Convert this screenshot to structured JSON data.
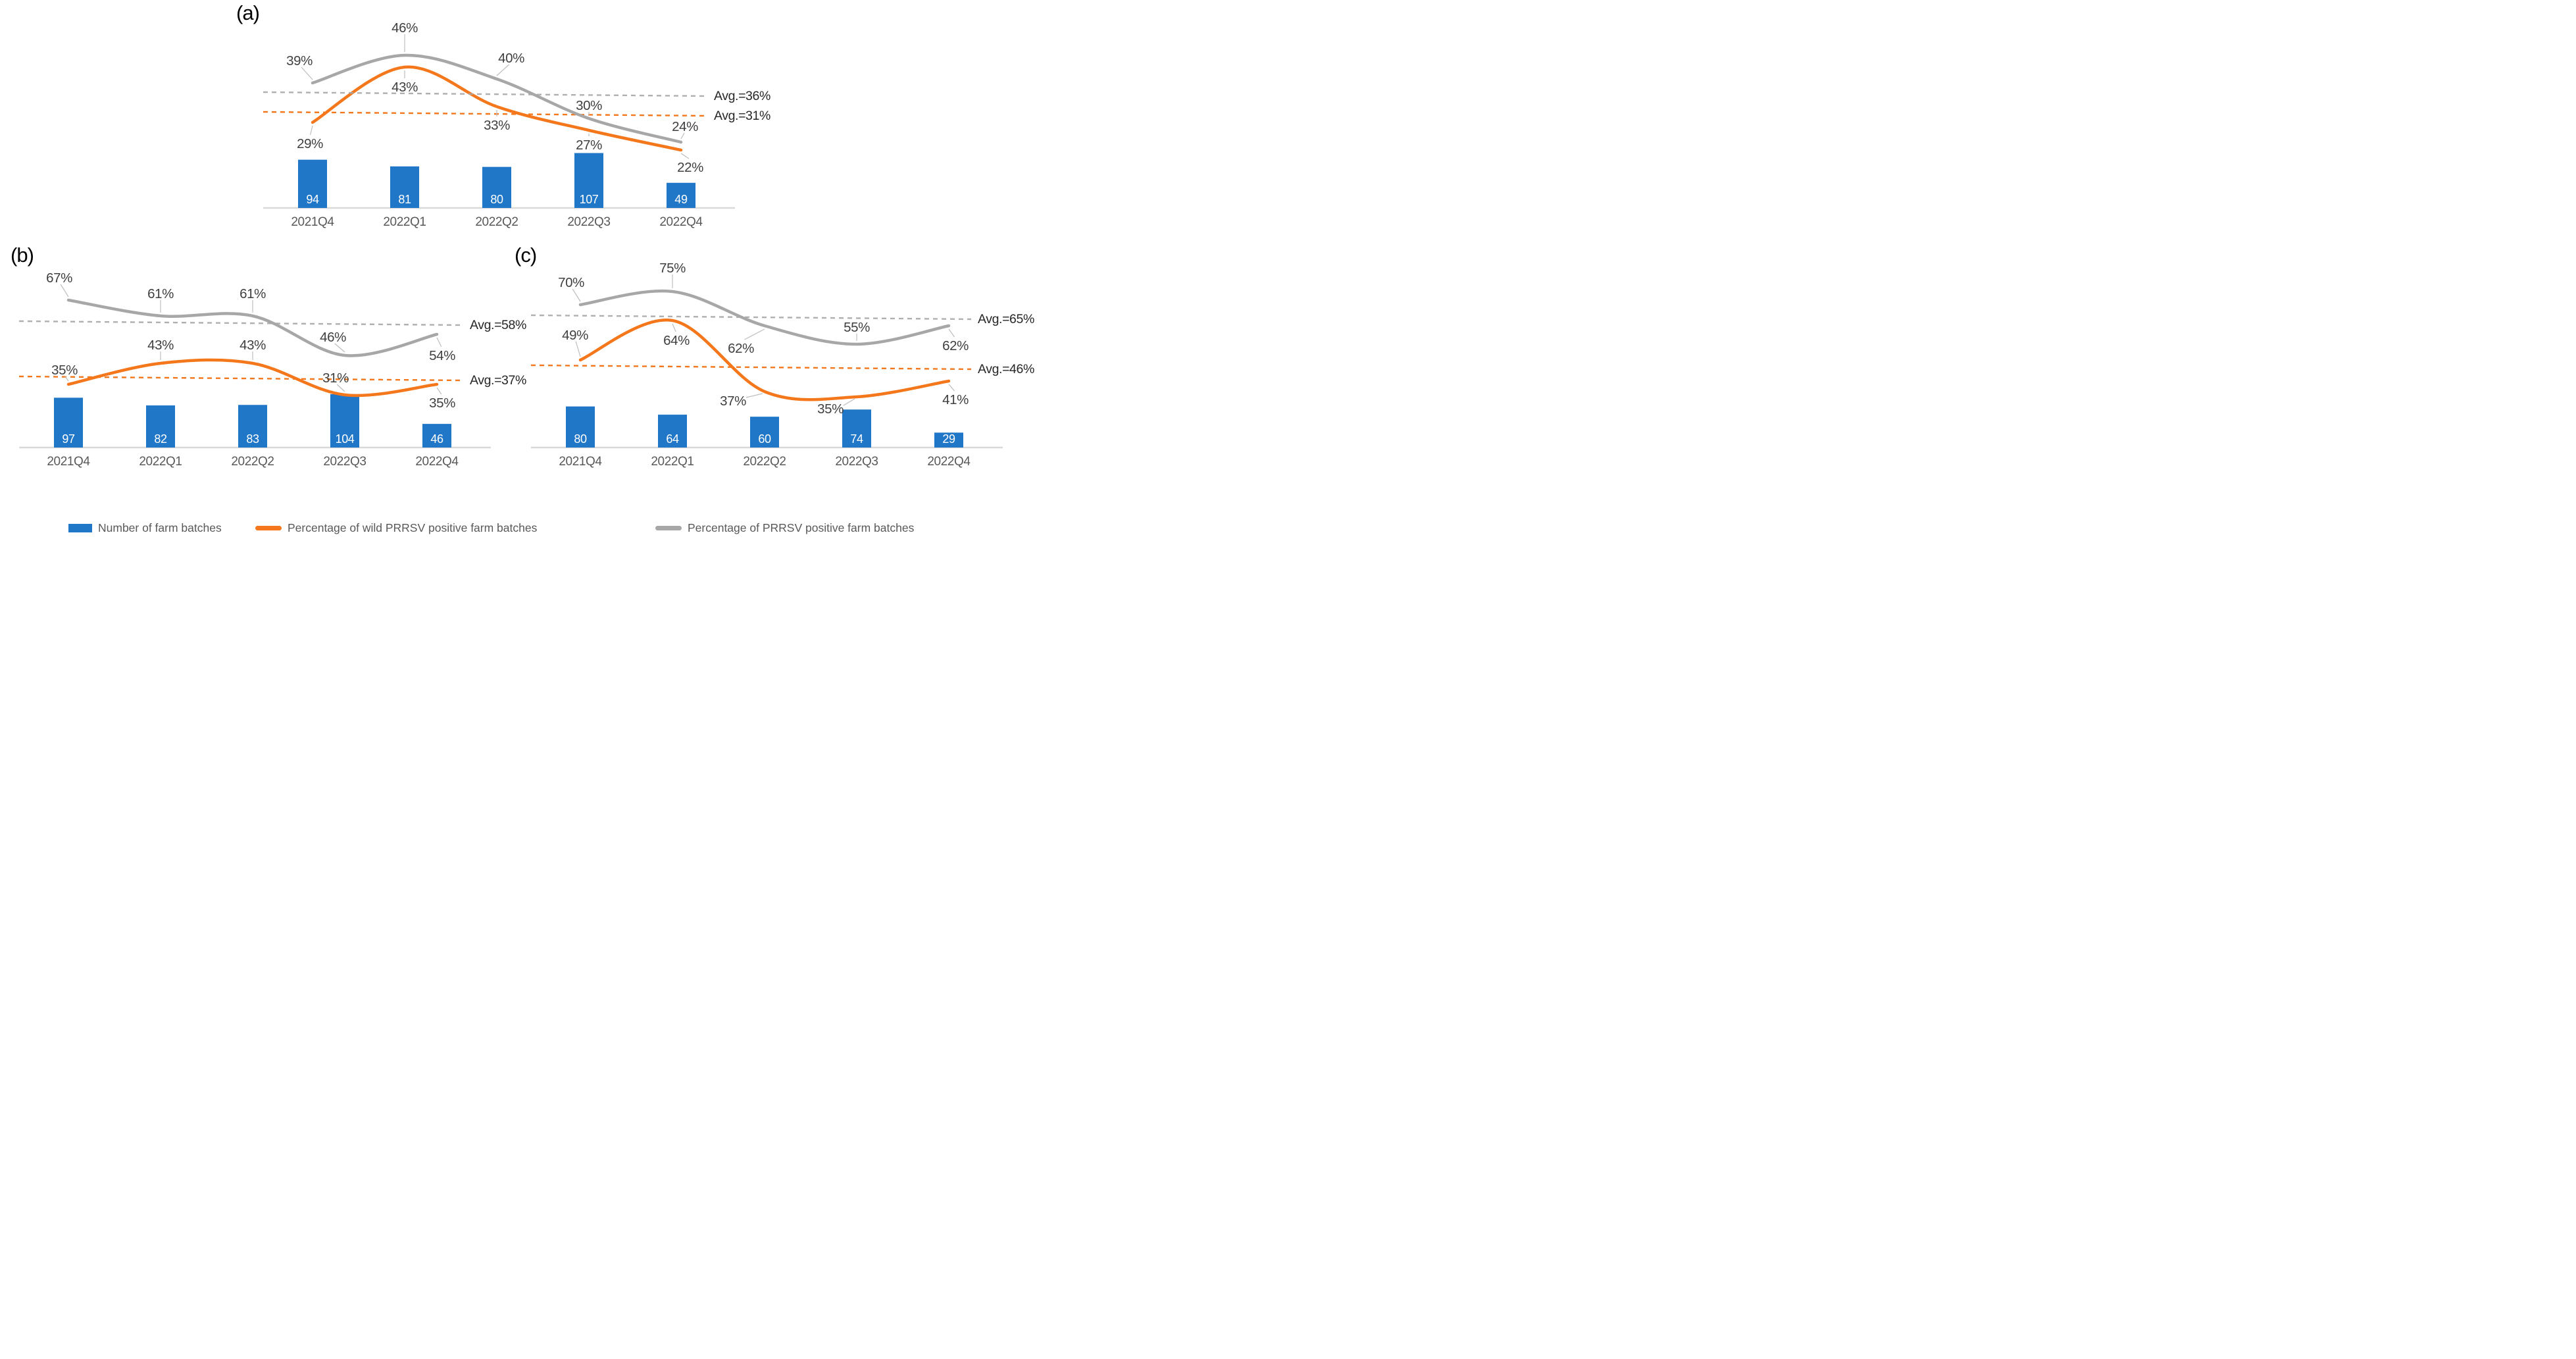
{
  "figure": {
    "background": "#FFFFFF",
    "colors": {
      "bar": "#2076C7",
      "orange": "#F4771B",
      "gray": "#A7A7A7",
      "pct_label_text": "#3F3F3F",
      "avg_label_text": "#262626",
      "axis_line": "#D9D9D9",
      "tick_text": "#595959",
      "bar_value_text": "#FFFFFF",
      "leader_line": "#BDBDBD"
    },
    "legend": [
      {
        "swatch": "bar-swatch",
        "color": "#2076C7",
        "label": "Number of farm batches"
      },
      {
        "swatch": "line-swatch",
        "color": "#F4771B",
        "label": "Percentage of wild PRRSV positive farm batches"
      },
      {
        "swatch": "line-swatch",
        "color": "#A7A7A7",
        "label": "Percentage of PRRSV positive farm batches"
      }
    ]
  },
  "chart_data": [
    {
      "panel": "(a)",
      "type": "bar+line",
      "grid": false,
      "legend_position": "bottom",
      "categories": [
        "2021Q4",
        "2022Q1",
        "2022Q2",
        "2022Q3",
        "2022Q4"
      ],
      "bars": {
        "name": "Number of farm batches",
        "values": [
          94,
          81,
          80,
          107,
          49
        ]
      },
      "series": [
        {
          "name": "Percentage of wild PRRSV positive farm batches",
          "color_key": "orange",
          "values": [
            29,
            43,
            33,
            27,
            22
          ],
          "labels": [
            "29%",
            "43%",
            "33%",
            "27%",
            "22%"
          ],
          "avg": 31,
          "avg_label": "Avg.=31%"
        },
        {
          "name": "Percentage of PRRSV positive farm batches",
          "color_key": "gray",
          "values": [
            39,
            46,
            40,
            30,
            24
          ],
          "labels": [
            "39%",
            "46%",
            "40%",
            "30%",
            "24%"
          ],
          "avg": 36,
          "avg_label": "Avg.=36%"
        }
      ]
    },
    {
      "panel": "(b)",
      "type": "bar+line",
      "grid": false,
      "legend_position": "bottom",
      "categories": [
        "2021Q4",
        "2022Q1",
        "2022Q2",
        "2022Q3",
        "2022Q4"
      ],
      "bars": {
        "name": "Number of farm batches",
        "values": [
          97,
          82,
          83,
          104,
          46
        ]
      },
      "series": [
        {
          "name": "Percentage of wild PRRSV positive farm batches",
          "color_key": "orange",
          "values": [
            35,
            43,
            43,
            31,
            35
          ],
          "labels": [
            "35%",
            "43%",
            "43%",
            "31%",
            "35%"
          ],
          "avg": 37,
          "avg_label": "Avg.=37%"
        },
        {
          "name": "Percentage of PRRSV positive farm batches",
          "color_key": "gray",
          "values": [
            67,
            61,
            61,
            46,
            54
          ],
          "labels": [
            "67%",
            "61%",
            "61%",
            "46%",
            "54%"
          ],
          "avg": 58,
          "avg_label": "Avg.=58%"
        }
      ]
    },
    {
      "panel": "(c)",
      "type": "bar+line",
      "grid": false,
      "legend_position": "bottom",
      "categories": [
        "2021Q4",
        "2022Q1",
        "2022Q2",
        "2022Q3",
        "2022Q4"
      ],
      "bars": {
        "name": "Number of farm batches",
        "values": [
          80,
          64,
          60,
          74,
          29
        ]
      },
      "series": [
        {
          "name": "Percentage of wild PRRSV positive farm batches",
          "color_key": "orange",
          "values": [
            49,
            64,
            37,
            35,
            41
          ],
          "labels": [
            "49%",
            "64%",
            "37%",
            "35%",
            "41%"
          ],
          "avg": 46,
          "avg_label": "Avg.=46%"
        },
        {
          "name": "Percentage of PRRSV positive farm batches",
          "color_key": "gray",
          "values": [
            70,
            75,
            62,
            55,
            62
          ],
          "labels": [
            "70%",
            "75%",
            "62%",
            "55%",
            "62%"
          ],
          "avg": 65,
          "avg_label": "Avg.=65%"
        }
      ]
    }
  ]
}
